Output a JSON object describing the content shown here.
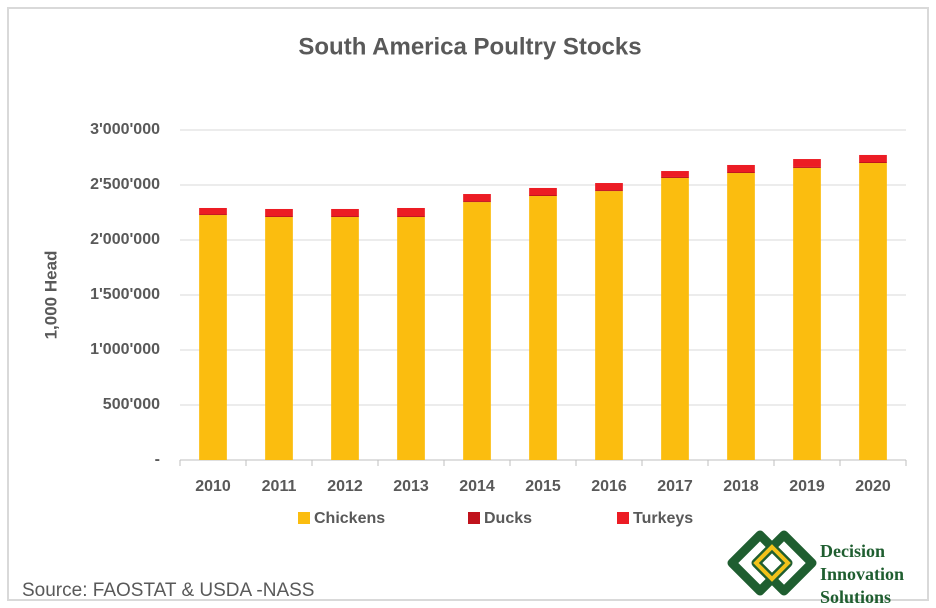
{
  "chart_data": {
    "type": "bar",
    "stacked": true,
    "title": "South America Poultry Stocks",
    "y_label": "1,000 Head",
    "categories": [
      "2010",
      "2011",
      "2012",
      "2013",
      "2014",
      "2015",
      "2016",
      "2017",
      "2018",
      "2019",
      "2020"
    ],
    "series": [
      {
        "name": "Chickens",
        "color": "#fbbd0f",
        "values": [
          2227000,
          2209000,
          2209000,
          2209000,
          2345000,
          2400000,
          2445000,
          2564000,
          2609000,
          2655000,
          2700000
        ]
      },
      {
        "name": "Ducks",
        "color": "#c0121c",
        "values": [
          9000,
          9000,
          9000,
          9000,
          9000,
          9000,
          9000,
          9000,
          9000,
          9000,
          9000
        ]
      },
      {
        "name": "Turkeys",
        "color": "#ec1c24",
        "values": [
          55000,
          64000,
          64000,
          73000,
          64000,
          64000,
          64000,
          54000,
          64000,
          72000,
          64000
        ]
      }
    ],
    "ylim": [
      0,
      3000000
    ],
    "yticks": [
      {
        "value": 0,
        "label": "-"
      },
      {
        "value": 500000,
        "label": "500'000"
      },
      {
        "value": 1000000,
        "label": "1'000'000"
      },
      {
        "value": 1500000,
        "label": "1'500'000"
      },
      {
        "value": 2000000,
        "label": "2'000'000"
      },
      {
        "value": 2500000,
        "label": "2'500'000"
      },
      {
        "value": 3000000,
        "label": "3'000'000"
      }
    ],
    "grid": true,
    "legend": "bottom"
  },
  "source": "Source: FAOSTAT & USDA -NASS",
  "logo": [
    "Decision",
    "Innovation",
    "Solutions"
  ]
}
